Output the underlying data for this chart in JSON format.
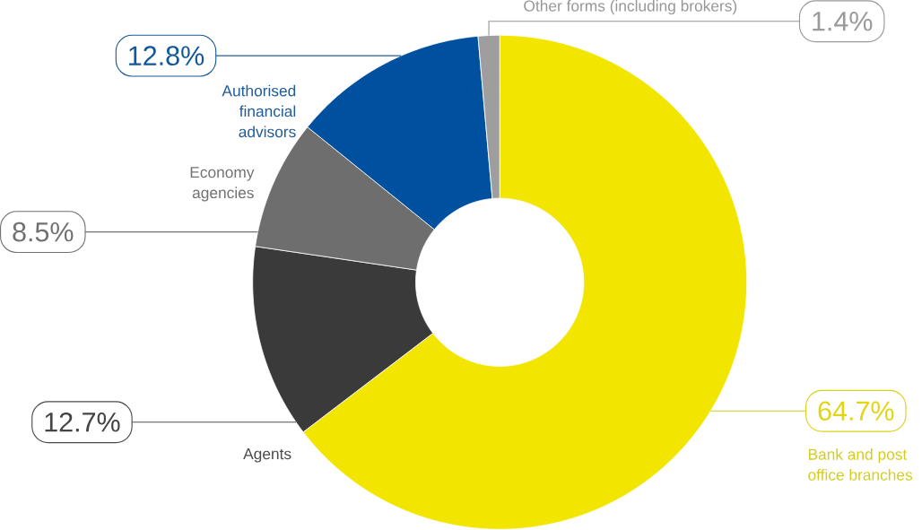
{
  "chart_data": {
    "type": "donut",
    "categories": [
      "Bank and post office branches",
      "Agents",
      "Economy agencies",
      "Authorised financial advisors",
      "Other forms (including brokers)"
    ],
    "values": [
      64.7,
      12.7,
      8.5,
      12.8,
      1.4
    ],
    "value_labels": [
      "64.7%",
      "12.7%",
      "8.5%",
      "12.8%",
      "1.4%"
    ],
    "colors": [
      "#f2e500",
      "#3a3a3a",
      "#6e6e6e",
      "#0050a0",
      "#9e9e9e"
    ]
  }
}
